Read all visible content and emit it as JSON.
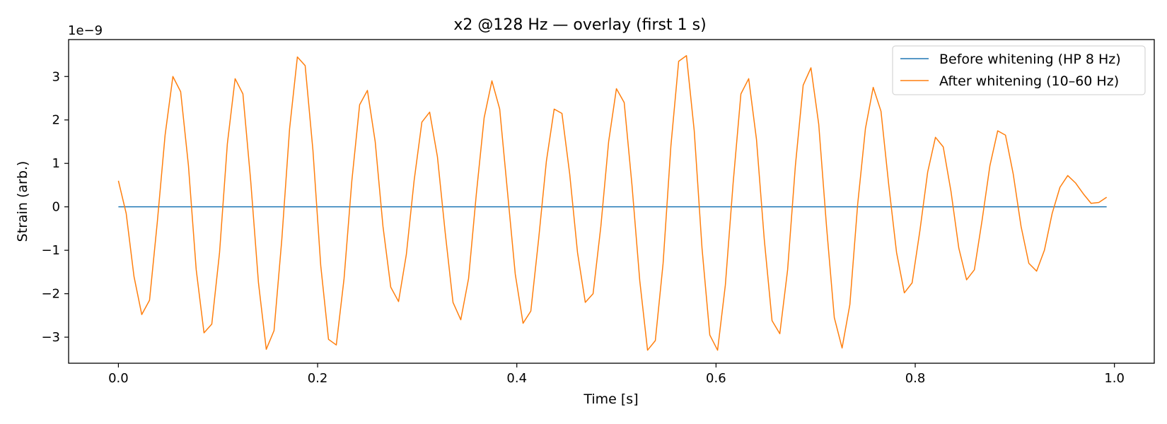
{
  "chart_data": {
    "type": "line",
    "title": "x2 @128 Hz — overlay (first 1 s)",
    "xlabel": "Time [s]",
    "ylabel": "Strain (arb.)",
    "y_offset_label": "1e−9",
    "xlim": [
      -0.05,
      1.04
    ],
    "ylim": [
      -3.6,
      3.85
    ],
    "x_ticks": [
      0.0,
      0.2,
      0.4,
      0.6,
      0.8,
      1.0
    ],
    "x_tick_labels": [
      "0.0",
      "0.2",
      "0.4",
      "0.6",
      "0.8",
      "1.0"
    ],
    "y_ticks": [
      -3,
      -2,
      -1,
      0,
      1,
      2,
      3
    ],
    "y_tick_labels": [
      "−3",
      "−2",
      "−1",
      "0",
      "1",
      "2",
      "3"
    ],
    "grid": false,
    "legend_position": "top-right",
    "sample_rate_hz": 128,
    "x_start": 0.0,
    "series": [
      {
        "name": "Before whitening (HP 8 Hz)",
        "color": "#1f77b4",
        "values": [
          0,
          0,
          0,
          0,
          0,
          0,
          0,
          0,
          0,
          0,
          0,
          0,
          0,
          0,
          0,
          0,
          0,
          0,
          0,
          0,
          0,
          0,
          0,
          0,
          0,
          0,
          0,
          0,
          0,
          0,
          0,
          0,
          0,
          0,
          0,
          0,
          0,
          0,
          0,
          0,
          0,
          0,
          0,
          0,
          0,
          0,
          0,
          0,
          0,
          0,
          0,
          0,
          0,
          0,
          0,
          0,
          0,
          0,
          0,
          0,
          0,
          0,
          0,
          0,
          0,
          0,
          0,
          0,
          0,
          0,
          0,
          0,
          0,
          0,
          0,
          0,
          0,
          0,
          0,
          0,
          0,
          0,
          0,
          0,
          0,
          0,
          0,
          0,
          0,
          0,
          0,
          0,
          0,
          0,
          0,
          0,
          0,
          0,
          0,
          0,
          0,
          0,
          0,
          0,
          0,
          0,
          0,
          0,
          0,
          0,
          0,
          0,
          0,
          0,
          0,
          0,
          0,
          0,
          0,
          0,
          0,
          0,
          0,
          0,
          0,
          0,
          0,
          0
        ]
      },
      {
        "name": "After whitening (10–60 Hz)",
        "color": "#ff7f0e",
        "values": [
          0.6,
          -0.15,
          -1.6,
          -2.48,
          -2.15,
          -0.35,
          1.65,
          3.0,
          2.65,
          0.95,
          -1.45,
          -2.9,
          -2.7,
          -1.05,
          1.45,
          2.95,
          2.6,
          0.6,
          -1.75,
          -3.28,
          -2.85,
          -0.75,
          1.8,
          3.45,
          3.25,
          1.3,
          -1.35,
          -3.05,
          -3.18,
          -1.65,
          0.6,
          2.35,
          2.68,
          1.5,
          -0.45,
          -1.85,
          -2.18,
          -1.1,
          0.6,
          1.95,
          2.18,
          1.15,
          -0.6,
          -2.2,
          -2.6,
          -1.65,
          0.3,
          2.05,
          2.9,
          2.25,
          0.35,
          -1.55,
          -2.68,
          -2.4,
          -0.75,
          1.05,
          2.25,
          2.15,
          0.75,
          -1.05,
          -2.2,
          -2.0,
          -0.45,
          1.5,
          2.72,
          2.4,
          0.5,
          -1.7,
          -3.3,
          -3.08,
          -1.3,
          1.4,
          3.35,
          3.48,
          1.75,
          -0.95,
          -2.95,
          -3.3,
          -1.8,
          0.55,
          2.6,
          2.95,
          1.55,
          -0.75,
          -2.62,
          -2.92,
          -1.45,
          0.95,
          2.8,
          3.2,
          1.9,
          -0.45,
          -2.55,
          -3.25,
          -2.25,
          0.05,
          1.8,
          2.75,
          2.2,
          0.5,
          -1.05,
          -1.98,
          -1.75,
          -0.55,
          0.8,
          1.6,
          1.38,
          0.35,
          -0.95,
          -1.68,
          -1.45,
          -0.3,
          0.95,
          1.75,
          1.65,
          0.75,
          -0.45,
          -1.3,
          -1.48,
          -1.0,
          -0.15,
          0.45,
          0.72,
          0.55,
          0.3,
          0.08,
          0.1,
          0.22
        ]
      }
    ]
  }
}
